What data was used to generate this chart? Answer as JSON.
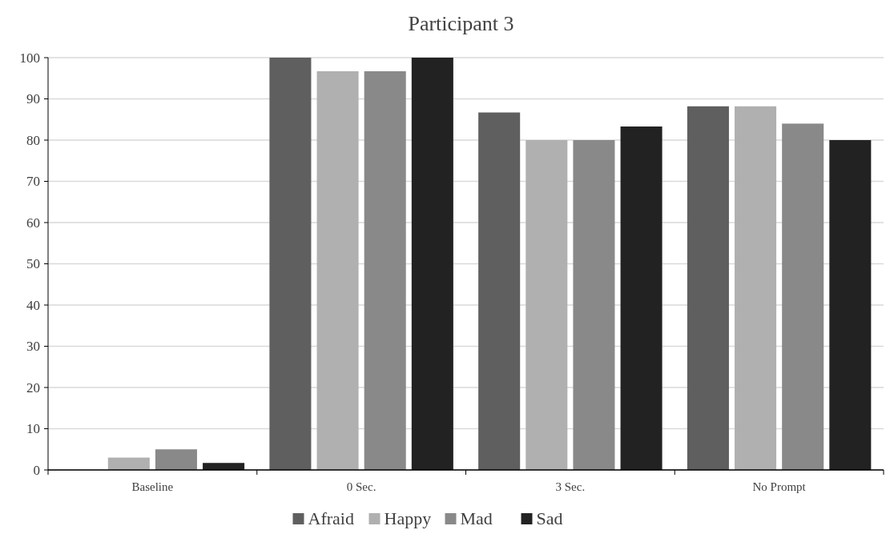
{
  "chart_data": {
    "type": "bar",
    "title": "Participant 3",
    "categories": [
      "Baseline",
      "0 Sec.",
      "3 Sec.",
      "No Prompt"
    ],
    "series": [
      {
        "name": "Afraid",
        "color": "#5f5f5f",
        "values": [
          0,
          100,
          86.7,
          88.2
        ]
      },
      {
        "name": "Happy",
        "color": "#b0b0b0",
        "values": [
          3,
          96.7,
          80,
          88.2
        ]
      },
      {
        "name": "Mad",
        "color": "#898989",
        "values": [
          5,
          96.7,
          80,
          84
        ]
      },
      {
        "name": "Sad",
        "color": "#222222",
        "values": [
          1.7,
          100,
          83.3,
          80
        ]
      }
    ],
    "ylim": [
      0,
      100
    ],
    "yticks": [
      0,
      10,
      20,
      30,
      40,
      50,
      60,
      70,
      80,
      90,
      100
    ],
    "grid": "y",
    "legend": "bottom"
  }
}
